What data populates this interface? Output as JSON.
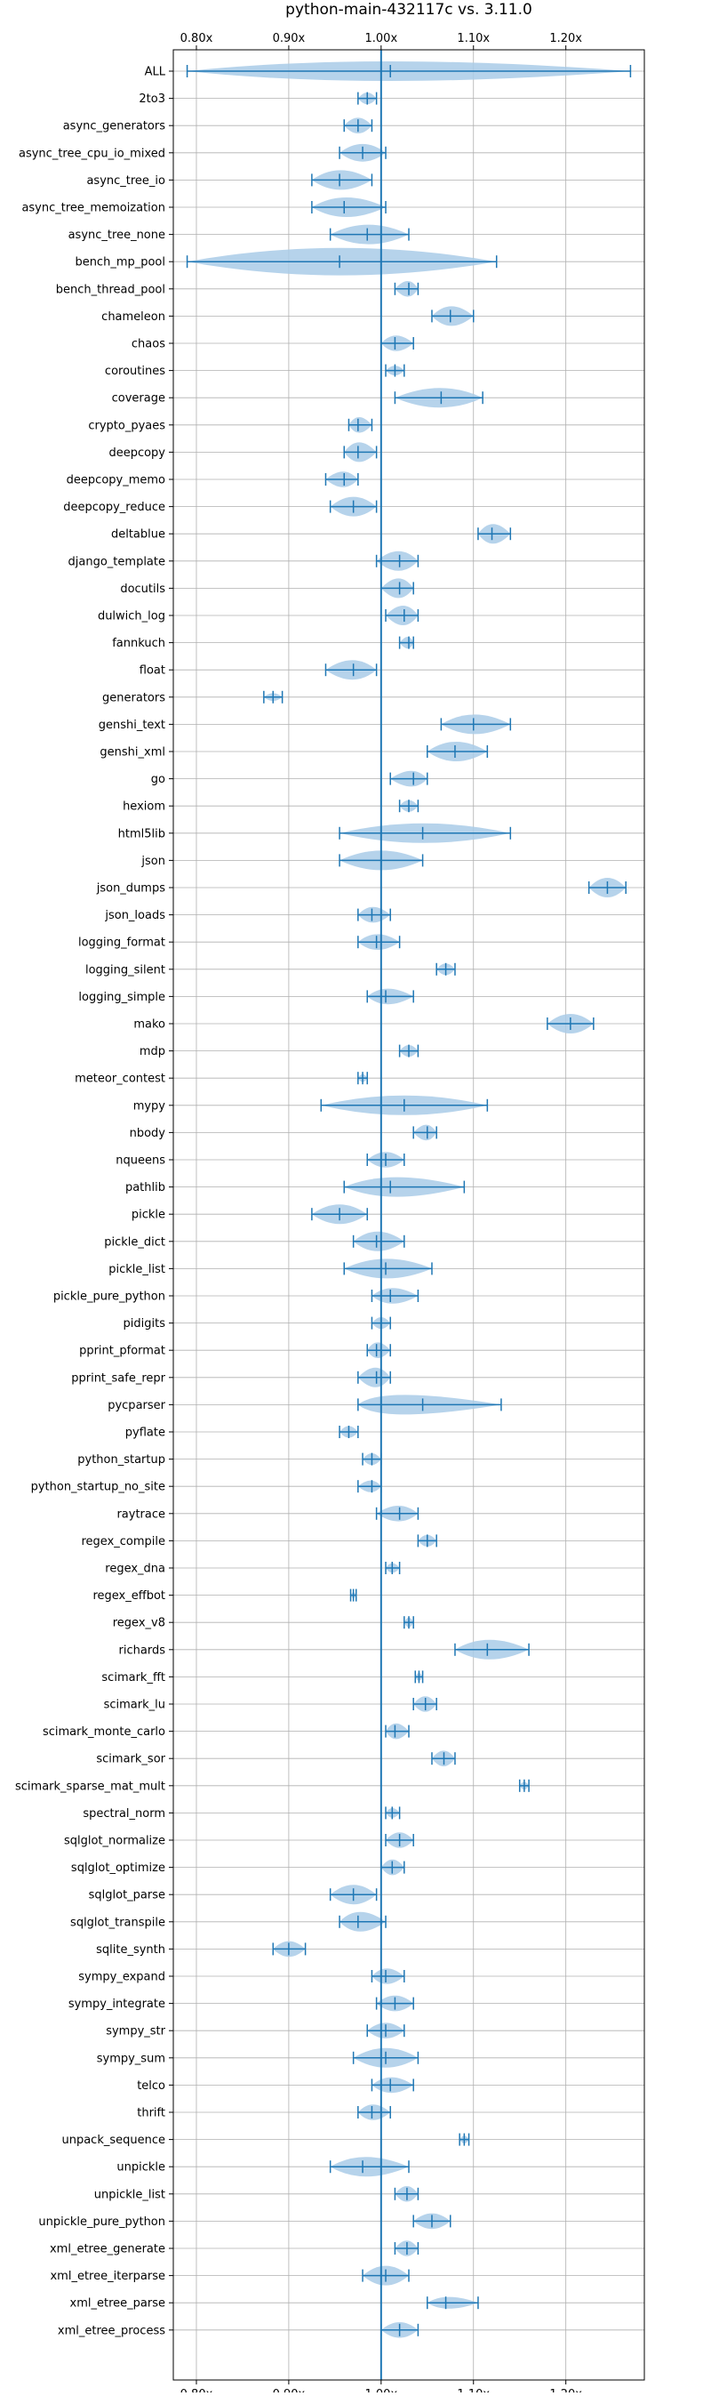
{
  "chart_data": {
    "type": "violin",
    "title": "python-main-432117c vs. 3.11.0",
    "xlim": [
      0.775,
      1.285
    ],
    "xticks": [
      0.8,
      0.9,
      1.0,
      1.1,
      1.2
    ],
    "xtick_labels": [
      "0.80x",
      "0.90x",
      "1.00x",
      "1.10x",
      "1.20x"
    ],
    "reference_line": 1.0,
    "grid": true,
    "violin_color": "#a9cbe8",
    "line_color": "#1f77b4",
    "benchmarks": [
      {
        "name": "ALL",
        "min": 0.79,
        "max": 1.27,
        "median": 1.01,
        "peak": 0.99,
        "width": 1.0
      },
      {
        "name": "2to3",
        "min": 0.975,
        "max": 0.995,
        "median": 0.985,
        "peak": 0.985,
        "width": 0.6
      },
      {
        "name": "async_generators",
        "min": 0.96,
        "max": 0.99,
        "median": 0.975,
        "peak": 0.975,
        "width": 0.8
      },
      {
        "name": "async_tree_cpu_io_mixed",
        "min": 0.955,
        "max": 1.005,
        "median": 0.98,
        "peak": 0.98,
        "width": 0.9
      },
      {
        "name": "async_tree_io",
        "min": 0.925,
        "max": 0.99,
        "median": 0.955,
        "peak": 0.955,
        "width": 1.0
      },
      {
        "name": "async_tree_memoization",
        "min": 0.925,
        "max": 1.005,
        "median": 0.96,
        "peak": 0.96,
        "width": 1.0
      },
      {
        "name": "async_tree_none",
        "min": 0.945,
        "max": 1.03,
        "median": 0.985,
        "peak": 0.985,
        "width": 1.0
      },
      {
        "name": "bench_mp_pool",
        "min": 0.79,
        "max": 1.125,
        "median": 0.955,
        "peak": 0.955,
        "width": 1.4
      },
      {
        "name": "bench_thread_pool",
        "min": 1.015,
        "max": 1.04,
        "median": 1.03,
        "peak": 1.03,
        "width": 0.8
      },
      {
        "name": "chameleon",
        "min": 1.055,
        "max": 1.1,
        "median": 1.075,
        "peak": 1.075,
        "width": 1.0
      },
      {
        "name": "chaos",
        "min": 1.0,
        "max": 1.035,
        "median": 1.015,
        "peak": 1.015,
        "width": 0.8
      },
      {
        "name": "coroutines",
        "min": 1.005,
        "max": 1.025,
        "median": 1.015,
        "peak": 1.015,
        "width": 0.5
      },
      {
        "name": "coverage",
        "min": 1.015,
        "max": 1.11,
        "median": 1.065,
        "peak": 1.065,
        "width": 1.0
      },
      {
        "name": "crypto_pyaes",
        "min": 0.965,
        "max": 0.99,
        "median": 0.975,
        "peak": 0.975,
        "width": 0.8
      },
      {
        "name": "deepcopy",
        "min": 0.96,
        "max": 0.995,
        "median": 0.975,
        "peak": 0.975,
        "width": 1.0
      },
      {
        "name": "deepcopy_memo",
        "min": 0.94,
        "max": 0.975,
        "median": 0.96,
        "peak": 0.96,
        "width": 0.8
      },
      {
        "name": "deepcopy_reduce",
        "min": 0.945,
        "max": 0.995,
        "median": 0.97,
        "peak": 0.97,
        "width": 1.0
      },
      {
        "name": "deltablue",
        "min": 1.105,
        "max": 1.14,
        "median": 1.12,
        "peak": 1.12,
        "width": 1.0
      },
      {
        "name": "django_template",
        "min": 0.995,
        "max": 1.04,
        "median": 1.02,
        "peak": 1.02,
        "width": 1.0
      },
      {
        "name": "docutils",
        "min": 1.0,
        "max": 1.035,
        "median": 1.02,
        "peak": 1.02,
        "width": 1.0
      },
      {
        "name": "dulwich_log",
        "min": 1.005,
        "max": 1.04,
        "median": 1.025,
        "peak": 1.025,
        "width": 1.0
      },
      {
        "name": "fannkuch",
        "min": 1.02,
        "max": 1.035,
        "median": 1.03,
        "peak": 1.03,
        "width": 0.6
      },
      {
        "name": "float",
        "min": 0.94,
        "max": 0.995,
        "median": 0.97,
        "peak": 0.97,
        "width": 1.0
      },
      {
        "name": "generators",
        "min": 0.873,
        "max": 0.893,
        "median": 0.883,
        "peak": 0.883,
        "width": 0.4
      },
      {
        "name": "genshi_text",
        "min": 1.065,
        "max": 1.14,
        "median": 1.1,
        "peak": 1.1,
        "width": 1.0
      },
      {
        "name": "genshi_xml",
        "min": 1.05,
        "max": 1.115,
        "median": 1.08,
        "peak": 1.08,
        "width": 1.0
      },
      {
        "name": "go",
        "min": 1.01,
        "max": 1.05,
        "median": 1.035,
        "peak": 1.035,
        "width": 0.8
      },
      {
        "name": "hexiom",
        "min": 1.02,
        "max": 1.04,
        "median": 1.03,
        "peak": 1.03,
        "width": 0.6
      },
      {
        "name": "html5lib",
        "min": 0.955,
        "max": 1.14,
        "median": 1.045,
        "peak": 1.045,
        "width": 1.0
      },
      {
        "name": "json",
        "min": 0.955,
        "max": 1.045,
        "median": 1.0,
        "peak": 1.0,
        "width": 1.0
      },
      {
        "name": "json_dumps",
        "min": 1.225,
        "max": 1.265,
        "median": 1.245,
        "peak": 1.245,
        "width": 1.0
      },
      {
        "name": "json_loads",
        "min": 0.975,
        "max": 1.01,
        "median": 0.99,
        "peak": 0.99,
        "width": 0.8
      },
      {
        "name": "logging_format",
        "min": 0.975,
        "max": 1.02,
        "median": 0.995,
        "peak": 0.995,
        "width": 0.8
      },
      {
        "name": "logging_silent",
        "min": 1.06,
        "max": 1.08,
        "median": 1.07,
        "peak": 1.07,
        "width": 0.6
      },
      {
        "name": "logging_simple",
        "min": 0.985,
        "max": 1.035,
        "median": 1.005,
        "peak": 1.005,
        "width": 0.8
      },
      {
        "name": "mako",
        "min": 1.18,
        "max": 1.23,
        "median": 1.205,
        "peak": 1.205,
        "width": 1.0
      },
      {
        "name": "mdp",
        "min": 1.02,
        "max": 1.04,
        "median": 1.03,
        "peak": 1.03,
        "width": 0.6
      },
      {
        "name": "meteor_contest",
        "min": 0.975,
        "max": 0.985,
        "median": 0.98,
        "peak": 0.98,
        "width": 0.4
      },
      {
        "name": "mypy",
        "min": 0.935,
        "max": 1.115,
        "median": 1.025,
        "peak": 1.025,
        "width": 1.0
      },
      {
        "name": "nbody",
        "min": 1.035,
        "max": 1.06,
        "median": 1.05,
        "peak": 1.05,
        "width": 0.8
      },
      {
        "name": "nqueens",
        "min": 0.985,
        "max": 1.025,
        "median": 1.005,
        "peak": 1.005,
        "width": 0.8
      },
      {
        "name": "pathlib",
        "min": 0.96,
        "max": 1.09,
        "median": 1.01,
        "peak": 1.01,
        "width": 1.0
      },
      {
        "name": "pickle",
        "min": 0.925,
        "max": 0.985,
        "median": 0.955,
        "peak": 0.955,
        "width": 1.0
      },
      {
        "name": "pickle_dict",
        "min": 0.97,
        "max": 1.025,
        "median": 0.995,
        "peak": 0.995,
        "width": 1.0
      },
      {
        "name": "pickle_list",
        "min": 0.96,
        "max": 1.055,
        "median": 1.005,
        "peak": 1.005,
        "width": 1.0
      },
      {
        "name": "pickle_pure_python",
        "min": 0.99,
        "max": 1.04,
        "median": 1.01,
        "peak": 1.01,
        "width": 0.8
      },
      {
        "name": "pidigits",
        "min": 0.99,
        "max": 1.01,
        "median": 1.0,
        "peak": 1.0,
        "width": 0.6
      },
      {
        "name": "pprint_pformat",
        "min": 0.985,
        "max": 1.01,
        "median": 0.995,
        "peak": 0.995,
        "width": 0.8
      },
      {
        "name": "pprint_safe_repr",
        "min": 0.975,
        "max": 1.01,
        "median": 0.995,
        "peak": 0.995,
        "width": 1.0
      },
      {
        "name": "pycparser",
        "min": 0.975,
        "max": 1.13,
        "median": 1.045,
        "peak": 1.0,
        "width": 1.0
      },
      {
        "name": "pyflate",
        "min": 0.955,
        "max": 0.975,
        "median": 0.965,
        "peak": 0.965,
        "width": 0.6
      },
      {
        "name": "python_startup",
        "min": 0.98,
        "max": 1.0,
        "median": 0.99,
        "peak": 0.99,
        "width": 0.6
      },
      {
        "name": "python_startup_no_site",
        "min": 0.975,
        "max": 1.0,
        "median": 0.99,
        "peak": 0.99,
        "width": 0.6
      },
      {
        "name": "raytrace",
        "min": 0.995,
        "max": 1.04,
        "median": 1.02,
        "peak": 1.02,
        "width": 0.8
      },
      {
        "name": "regex_compile",
        "min": 1.04,
        "max": 1.06,
        "median": 1.05,
        "peak": 1.05,
        "width": 0.6
      },
      {
        "name": "regex_dna",
        "min": 1.005,
        "max": 1.02,
        "median": 1.012,
        "peak": 1.012,
        "width": 0.5
      },
      {
        "name": "regex_effbot",
        "min": 0.967,
        "max": 0.973,
        "median": 0.97,
        "peak": 0.97,
        "width": 0.3
      },
      {
        "name": "regex_v8",
        "min": 1.025,
        "max": 1.035,
        "median": 1.03,
        "peak": 1.03,
        "width": 0.5
      },
      {
        "name": "richards",
        "min": 1.08,
        "max": 1.16,
        "median": 1.115,
        "peak": 1.115,
        "width": 1.0
      },
      {
        "name": "scimark_fft",
        "min": 1.037,
        "max": 1.045,
        "median": 1.041,
        "peak": 1.041,
        "width": 0.4
      },
      {
        "name": "scimark_lu",
        "min": 1.035,
        "max": 1.06,
        "median": 1.048,
        "peak": 1.048,
        "width": 0.8
      },
      {
        "name": "scimark_monte_carlo",
        "min": 1.005,
        "max": 1.03,
        "median": 1.015,
        "peak": 1.015,
        "width": 0.8
      },
      {
        "name": "scimark_sor",
        "min": 1.055,
        "max": 1.08,
        "median": 1.068,
        "peak": 1.068,
        "width": 0.8
      },
      {
        "name": "scimark_sparse_mat_mult",
        "min": 1.15,
        "max": 1.16,
        "median": 1.155,
        "peak": 1.155,
        "width": 0.4
      },
      {
        "name": "spectral_norm",
        "min": 1.005,
        "max": 1.02,
        "median": 1.012,
        "peak": 1.012,
        "width": 0.5
      },
      {
        "name": "sqlglot_normalize",
        "min": 1.005,
        "max": 1.035,
        "median": 1.02,
        "peak": 1.02,
        "width": 0.8
      },
      {
        "name": "sqlglot_optimize",
        "min": 1.0,
        "max": 1.025,
        "median": 1.012,
        "peak": 1.012,
        "width": 0.8
      },
      {
        "name": "sqlglot_parse",
        "min": 0.945,
        "max": 0.995,
        "median": 0.97,
        "peak": 0.97,
        "width": 1.0
      },
      {
        "name": "sqlglot_transpile",
        "min": 0.955,
        "max": 1.005,
        "median": 0.975,
        "peak": 0.975,
        "width": 1.0
      },
      {
        "name": "sqlite_synth",
        "min": 0.883,
        "max": 0.918,
        "median": 0.9,
        "peak": 0.9,
        "width": 0.8
      },
      {
        "name": "sympy_expand",
        "min": 0.99,
        "max": 1.025,
        "median": 1.005,
        "peak": 1.005,
        "width": 0.8
      },
      {
        "name": "sympy_integrate",
        "min": 0.995,
        "max": 1.035,
        "median": 1.015,
        "peak": 1.015,
        "width": 0.8
      },
      {
        "name": "sympy_str",
        "min": 0.985,
        "max": 1.025,
        "median": 1.005,
        "peak": 1.005,
        "width": 0.8
      },
      {
        "name": "sympy_sum",
        "min": 0.97,
        "max": 1.04,
        "median": 1.005,
        "peak": 1.005,
        "width": 1.0
      },
      {
        "name": "telco",
        "min": 0.99,
        "max": 1.035,
        "median": 1.01,
        "peak": 1.01,
        "width": 0.8
      },
      {
        "name": "thrift",
        "min": 0.975,
        "max": 1.01,
        "median": 0.99,
        "peak": 0.99,
        "width": 0.8
      },
      {
        "name": "unpack_sequence",
        "min": 1.085,
        "max": 1.095,
        "median": 1.09,
        "peak": 1.09,
        "width": 0.4
      },
      {
        "name": "unpickle",
        "min": 0.945,
        "max": 1.03,
        "median": 0.98,
        "peak": 0.98,
        "width": 1.0
      },
      {
        "name": "unpickle_list",
        "min": 1.015,
        "max": 1.04,
        "median": 1.028,
        "peak": 1.028,
        "width": 0.8
      },
      {
        "name": "unpickle_pure_python",
        "min": 1.035,
        "max": 1.075,
        "median": 1.055,
        "peak": 1.055,
        "width": 0.8
      },
      {
        "name": "xml_etree_generate",
        "min": 1.015,
        "max": 1.04,
        "median": 1.028,
        "peak": 1.028,
        "width": 0.8
      },
      {
        "name": "xml_etree_iterparse",
        "min": 0.98,
        "max": 1.03,
        "median": 1.005,
        "peak": 1.005,
        "width": 1.0
      },
      {
        "name": "xml_etree_parse",
        "min": 1.05,
        "max": 1.105,
        "median": 1.07,
        "peak": 1.07,
        "width": 0.6
      },
      {
        "name": "xml_etree_process",
        "min": 1.0,
        "max": 1.04,
        "median": 1.02,
        "peak": 1.02,
        "width": 0.8
      }
    ]
  }
}
